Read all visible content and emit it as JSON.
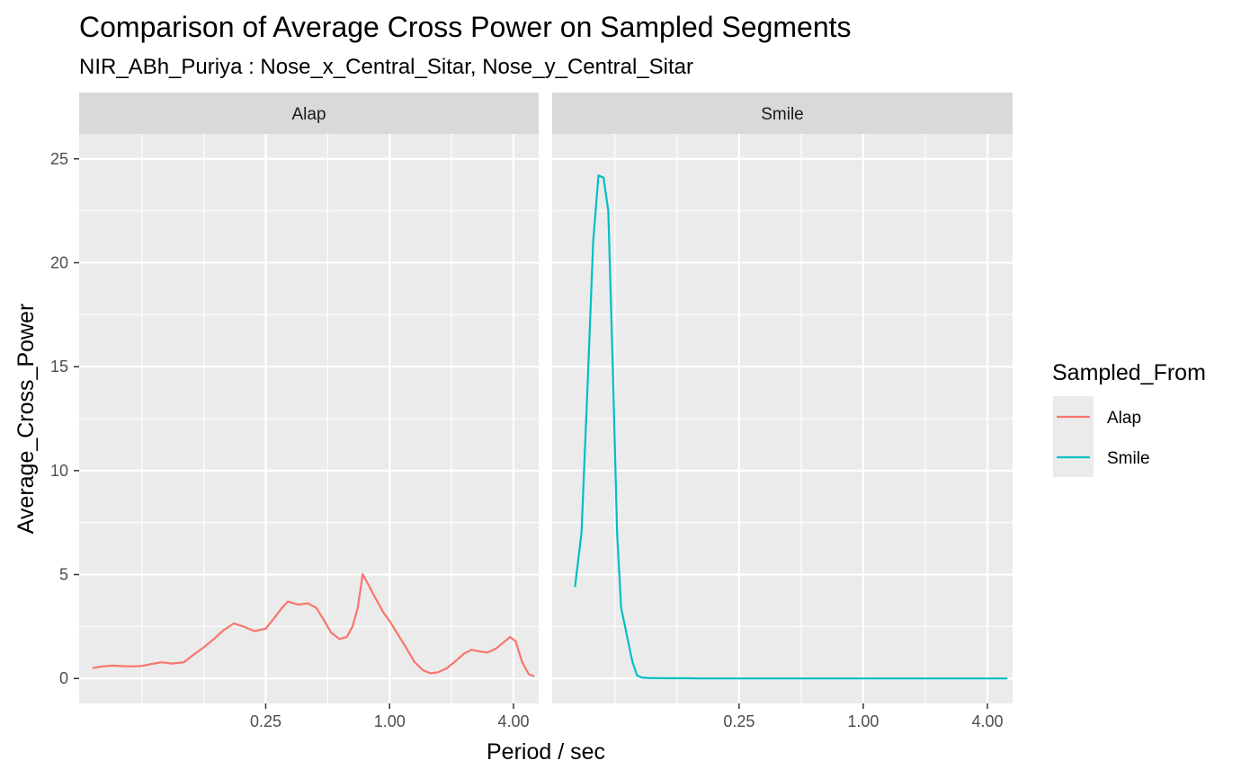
{
  "chart_data": {
    "type": "line",
    "title": "Comparison of Average Cross Power on Sampled Segments",
    "subtitle": "NIR_ABh_Puriya : Nose_x_Central_Sitar, Nose_y_Central_Sitar",
    "xlabel": "Period / sec",
    "ylabel": "Average_Cross_Power",
    "x_scale": "log2",
    "xlim": [
      0.031,
      5.3
    ],
    "ylim": [
      -1.2,
      26.2
    ],
    "x_ticks": [
      0.25,
      1.0,
      4.0
    ],
    "x_tick_labels": [
      "0.25",
      "1.00",
      "4.00"
    ],
    "y_ticks": [
      0,
      5,
      10,
      15,
      20,
      25
    ],
    "y_tick_labels": [
      "0",
      "5",
      "10",
      "15",
      "20",
      "25"
    ],
    "grid": true,
    "facets": [
      "Alap",
      "Smile"
    ],
    "legend": {
      "title": "Sampled_From",
      "position": "right",
      "items": [
        {
          "label": "Alap",
          "color": "#F8766D"
        },
        {
          "label": "Smile",
          "color": "#00BFC4"
        }
      ]
    },
    "series": [
      {
        "name": "Alap",
        "facet": "Alap",
        "color": "#F8766D",
        "x": [
          0.036,
          0.04,
          0.045,
          0.05,
          0.055,
          0.062,
          0.07,
          0.078,
          0.088,
          0.1,
          0.11,
          0.125,
          0.14,
          0.155,
          0.175,
          0.195,
          0.22,
          0.25,
          0.275,
          0.3,
          0.32,
          0.36,
          0.4,
          0.44,
          0.48,
          0.52,
          0.57,
          0.62,
          0.66,
          0.7,
          0.74,
          0.79,
          0.85,
          0.93,
          1.01,
          1.1,
          1.2,
          1.32,
          1.45,
          1.58,
          1.72,
          1.9,
          2.1,
          2.3,
          2.5,
          2.75,
          3.0,
          3.3,
          3.85,
          4.1,
          4.4,
          4.75,
          5.05
        ],
        "y": [
          0.5,
          0.58,
          0.62,
          0.6,
          0.58,
          0.6,
          0.7,
          0.78,
          0.72,
          0.78,
          1.1,
          1.5,
          1.9,
          2.3,
          2.65,
          2.5,
          2.28,
          2.4,
          2.9,
          3.4,
          3.7,
          3.55,
          3.62,
          3.4,
          2.8,
          2.2,
          1.9,
          2.0,
          2.5,
          3.4,
          5.02,
          4.5,
          3.9,
          3.2,
          2.7,
          2.1,
          1.5,
          0.8,
          0.4,
          0.25,
          0.3,
          0.5,
          0.85,
          1.2,
          1.38,
          1.3,
          1.25,
          1.45,
          2.0,
          1.78,
          0.8,
          0.2,
          0.1
        ]
      },
      {
        "name": "Smile",
        "facet": "Smile",
        "color": "#00BFC4",
        "x": [
          0.04,
          0.043,
          0.046,
          0.049,
          0.052,
          0.055,
          0.058,
          0.061,
          0.064,
          0.067,
          0.07,
          0.073,
          0.076,
          0.08,
          0.084,
          0.088,
          0.092,
          0.096,
          0.1,
          0.11,
          0.12,
          0.14,
          0.16,
          0.2,
          0.3,
          0.5,
          1.0,
          2.0,
          3.0,
          4.0,
          5.0
        ],
        "y": [
          4.4,
          7.0,
          14.0,
          21.0,
          24.2,
          24.1,
          22.5,
          15.0,
          7.0,
          3.4,
          2.5,
          1.6,
          0.8,
          0.15,
          0.05,
          0.03,
          0.02,
          0.02,
          0.02,
          0.01,
          0.01,
          0.01,
          0.0,
          0.0,
          0.0,
          0.0,
          0.0,
          0.0,
          0.0,
          0.0,
          0.0
        ]
      }
    ]
  }
}
